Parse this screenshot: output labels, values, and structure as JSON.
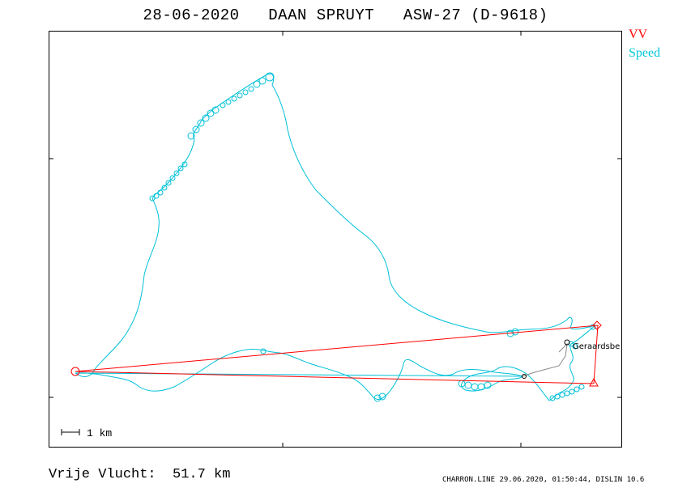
{
  "header": {
    "date": "28-06-2020",
    "pilot": "DAAN SPRUYT",
    "glider": "ASW-27 (D-9618)"
  },
  "legend": {
    "vv_label": "VV",
    "speed_label": "Speed"
  },
  "colors": {
    "task_line": "#ff0000",
    "track_line": "#00c0d8",
    "frame": "#000000",
    "place_marker": "#000000"
  },
  "map": {
    "scale_label": "1 km",
    "place_name": "Geraardsbe"
  },
  "summary": {
    "label": "Vrije Vlucht:",
    "distance": "51.7 km"
  },
  "footer": {
    "text": "CHARRON.LINE 29.06.2020, 01:50:44, DISLIN 10.6"
  }
}
